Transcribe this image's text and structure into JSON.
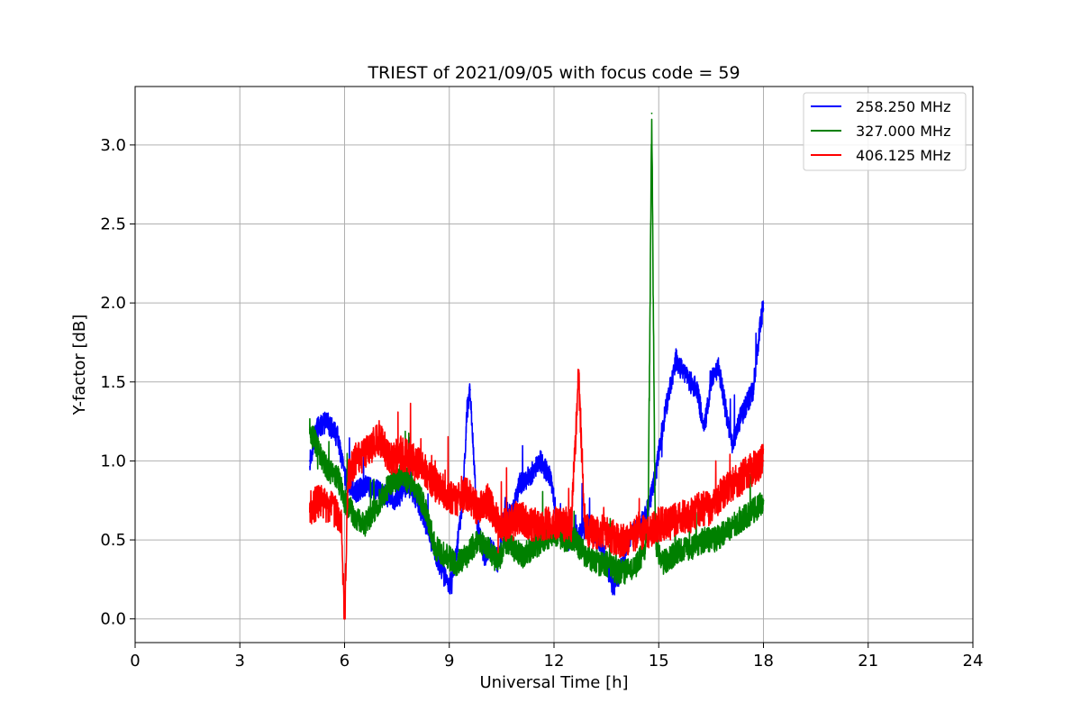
{
  "chart_data": {
    "type": "line",
    "title": "TRIEST of 2021/09/05 with focus code = 59",
    "xlabel": "Universal Time [h]",
    "ylabel": "Y-factor [dB]",
    "xlim": [
      0,
      24
    ],
    "ylim": [
      -0.15,
      3.37
    ],
    "xticks": [
      0,
      3,
      6,
      9,
      12,
      15,
      18,
      21,
      24
    ],
    "xtick_labels": [
      "0",
      "3",
      "6",
      "9",
      "12",
      "15",
      "18",
      "21",
      "24"
    ],
    "yticks": [
      0.0,
      0.5,
      1.0,
      1.5,
      2.0,
      2.5,
      3.0
    ],
    "ytick_labels": [
      "0.0",
      "0.5",
      "1.0",
      "1.5",
      "2.0",
      "2.5",
      "3.0"
    ],
    "grid": true,
    "legend_position": "top-right",
    "series": [
      {
        "name": "258.250 MHz",
        "color": "#0000ff",
        "x": [
          5.0,
          5.2,
          5.5,
          5.8,
          6.0,
          6.3,
          6.6,
          7.0,
          7.4,
          7.8,
          8.1,
          8.4,
          8.7,
          9.0,
          9.2,
          9.4,
          9.5,
          9.6,
          9.8,
          10.0,
          10.2,
          10.4,
          10.6,
          10.8,
          11.0,
          11.3,
          11.6,
          11.9,
          12.1,
          12.4,
          12.7,
          13.0,
          13.3,
          13.5,
          13.7,
          13.9,
          14.1,
          14.3,
          14.5,
          14.7,
          14.9,
          15.1,
          15.3,
          15.5,
          15.7,
          15.9,
          16.1,
          16.3,
          16.5,
          16.7,
          16.9,
          17.1,
          17.3,
          17.5,
          17.7,
          17.85,
          18.0
        ],
        "y": [
          1.0,
          1.2,
          1.25,
          1.15,
          0.9,
          0.8,
          0.85,
          0.8,
          0.75,
          0.85,
          0.75,
          0.55,
          0.35,
          0.2,
          0.4,
          0.8,
          1.3,
          1.45,
          0.6,
          0.4,
          0.45,
          0.35,
          0.7,
          0.65,
          0.85,
          0.9,
          1.0,
          0.9,
          0.6,
          0.5,
          0.55,
          0.6,
          0.5,
          0.35,
          0.2,
          0.3,
          0.5,
          0.55,
          0.6,
          0.7,
          0.9,
          1.2,
          1.45,
          1.65,
          1.55,
          1.5,
          1.45,
          1.2,
          1.5,
          1.6,
          1.35,
          1.1,
          1.25,
          1.35,
          1.45,
          1.75,
          2.0
        ]
      },
      {
        "name": "327.000 MHz",
        "color": "#008000",
        "x": [
          5.0,
          5.2,
          5.5,
          5.8,
          6.0,
          6.3,
          6.6,
          7.0,
          7.3,
          7.6,
          8.0,
          8.3,
          8.6,
          8.9,
          9.2,
          9.5,
          9.8,
          10.1,
          10.4,
          10.6,
          10.8,
          11.1,
          11.4,
          11.7,
          12.0,
          12.3,
          12.6,
          12.9,
          13.2,
          13.5,
          13.8,
          14.1,
          14.4,
          14.6,
          14.7,
          14.8,
          14.9,
          15.1,
          15.4,
          15.7,
          16.0,
          16.3,
          16.6,
          16.9,
          17.2,
          17.5,
          17.8,
          18.0
        ],
        "y": [
          1.2,
          1.1,
          0.95,
          0.9,
          0.75,
          0.65,
          0.6,
          0.75,
          0.85,
          0.9,
          0.85,
          0.7,
          0.45,
          0.4,
          0.35,
          0.4,
          0.5,
          0.45,
          0.35,
          0.5,
          0.45,
          0.4,
          0.45,
          0.5,
          0.55,
          0.5,
          0.5,
          0.4,
          0.35,
          0.35,
          0.3,
          0.3,
          0.35,
          0.45,
          0.7,
          3.2,
          0.5,
          0.35,
          0.4,
          0.45,
          0.45,
          0.5,
          0.5,
          0.55,
          0.6,
          0.65,
          0.7,
          0.75
        ]
      },
      {
        "name": "406.125 MHz",
        "color": "#ff0000",
        "x": [
          5.0,
          5.3,
          5.6,
          5.9,
          6.0,
          6.1,
          6.3,
          6.6,
          7.0,
          7.3,
          7.6,
          8.0,
          8.3,
          8.6,
          8.9,
          9.2,
          9.5,
          9.8,
          10.1,
          10.4,
          10.7,
          11.0,
          11.3,
          11.6,
          11.9,
          12.2,
          12.5,
          12.7,
          12.9,
          13.2,
          13.5,
          13.8,
          14.1,
          14.4,
          14.7,
          15.0,
          15.3,
          15.6,
          15.9,
          16.2,
          16.5,
          16.8,
          17.1,
          17.4,
          17.7,
          18.0
        ],
        "y": [
          0.7,
          0.75,
          0.7,
          0.65,
          0.0,
          0.9,
          1.0,
          1.05,
          1.15,
          1.0,
          1.05,
          1.0,
          0.95,
          0.85,
          0.8,
          0.75,
          0.8,
          0.7,
          0.75,
          0.6,
          0.6,
          0.65,
          0.6,
          0.6,
          0.6,
          0.6,
          0.6,
          1.55,
          0.55,
          0.55,
          0.55,
          0.5,
          0.5,
          0.55,
          0.55,
          0.6,
          0.6,
          0.65,
          0.65,
          0.7,
          0.7,
          0.8,
          0.85,
          0.9,
          0.95,
          1.0
        ]
      }
    ]
  }
}
